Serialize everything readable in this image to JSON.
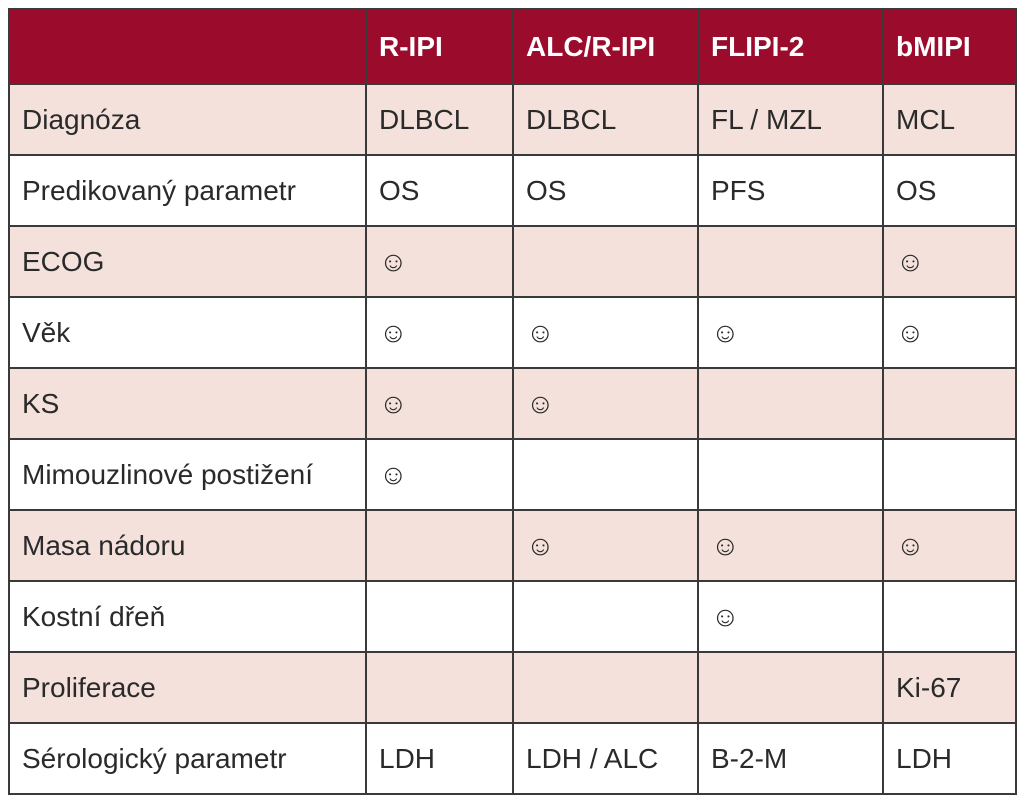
{
  "table": {
    "header": [
      null,
      "R-IPI",
      "ALC/R-IPI",
      "FLIPI-2",
      "bMIPI"
    ],
    "rows": [
      [
        "Diagnóza",
        "DLBCL",
        "DLBCL",
        "FL / MZL",
        "MCL"
      ],
      [
        "Predikovaný parametr",
        "OS",
        "OS",
        "PFS",
        "OS"
      ],
      [
        "ECOG",
        "☺",
        null,
        null,
        "☺"
      ],
      [
        "Věk",
        "☺",
        "☺",
        "☺",
        "☺"
      ],
      [
        "KS",
        "☺",
        "☺",
        null,
        null
      ],
      [
        "Mimouzlinové postižení",
        "☺",
        null,
        null,
        null
      ],
      [
        "Masa nádoru",
        null,
        "☺",
        "☺",
        "☺"
      ],
      [
        "Kostní dřeň",
        null,
        null,
        "☺",
        null
      ],
      [
        "Proliferace",
        null,
        null,
        null,
        "Ki-67"
      ],
      [
        "Sérologický parametr",
        "LDH",
        "LDH / ALC",
        "B-2-M",
        "LDH"
      ]
    ]
  }
}
